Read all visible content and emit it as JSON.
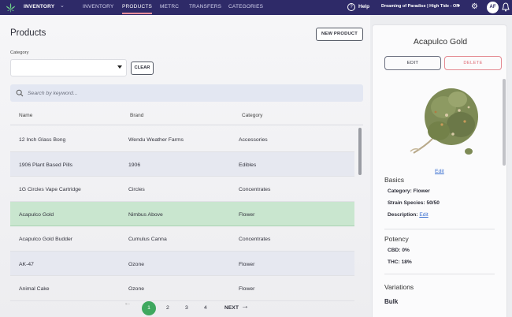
{
  "nav": {
    "brand": "INVENTORY",
    "links": [
      "INVENTORY",
      "PRODUCTS",
      "METRC",
      "TRANSFERS",
      "CATEGORIES"
    ],
    "help": "Help",
    "store": "Dreaming of Paradise | High Tide - OR",
    "avatar": "AF"
  },
  "main": {
    "title": "Products",
    "new_product": "NEW PRODUCT",
    "category_label": "Category",
    "category_value": "",
    "clear": "CLEAR",
    "search_placeholder": "Search by keyword..."
  },
  "table": {
    "headers": [
      "Name",
      "Brand",
      "Category"
    ],
    "rows": [
      {
        "name": "12 Inch Glass Bong",
        "brand": "Wendu Weather Farms",
        "category": "Accessories"
      },
      {
        "name": "1906 Plant Based Pills",
        "brand": "1906",
        "category": "Edibles"
      },
      {
        "name": "1G Circles Vape Cartridge",
        "brand": "Circles",
        "category": "Concentrates"
      },
      {
        "name": "Acapulco Gold",
        "brand": "Nimbus Above",
        "category": "Flower"
      },
      {
        "name": "Acapulco Gold Budder",
        "brand": "Cumulus Canna",
        "category": "Concentrates"
      },
      {
        "name": "AK-47",
        "brand": "Ozone",
        "category": "Flower"
      },
      {
        "name": "Animal Cake",
        "brand": "Ozone",
        "category": "Flower"
      }
    ],
    "selected_index": 3
  },
  "pagination": {
    "pages": [
      "1",
      "2",
      "3",
      "4"
    ],
    "current": "1",
    "next": "NEXT"
  },
  "detail": {
    "title": "Acapulco Gold",
    "edit": "EDIT",
    "delete": "DELETE",
    "image_edit": "Edit",
    "basics_title": "Basics",
    "category": "Category: Flower",
    "strain": "Strain Species: 50/50",
    "description_label": "Description:",
    "description_link": "Edit",
    "potency_title": "Potency",
    "cbd": "CBD: 0%",
    "thc": "THC: 18%",
    "variations_title": "Variations",
    "variation": "Bulk"
  },
  "colors": {
    "nav_bg": "#2e2a68",
    "selected_row": "#c9e6cf",
    "active_page": "#3fa85f",
    "delete": "#e0707a",
    "link": "#3a6fd0"
  }
}
